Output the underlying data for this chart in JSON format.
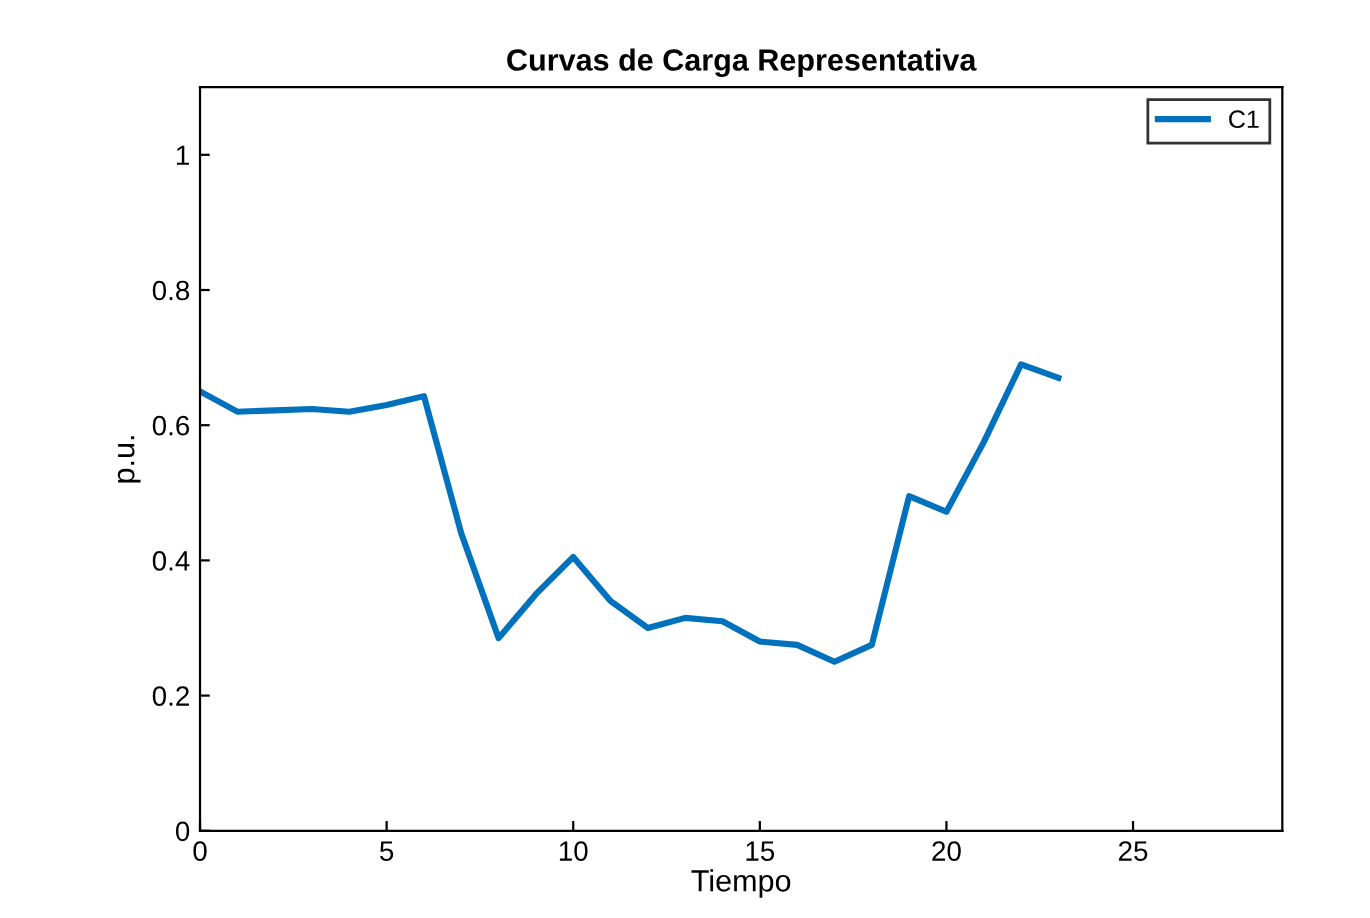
{
  "chart_data": {
    "type": "line",
    "title": "Curvas de Carga Representativa",
    "xlabel": "Tiempo",
    "ylabel": "p.u.",
    "x": [
      0,
      1,
      2,
      3,
      4,
      5,
      6,
      7,
      8,
      9,
      10,
      11,
      12,
      13,
      14,
      15,
      16,
      17,
      18,
      19,
      20,
      21,
      22,
      23
    ],
    "series": [
      {
        "name": "C1",
        "color": "#0072bd",
        "values": [
          0.65,
          0.62,
          0.622,
          0.624,
          0.62,
          0.63,
          0.643,
          0.44,
          0.285,
          0.35,
          0.405,
          0.34,
          0.3,
          0.315,
          0.31,
          0.28,
          0.275,
          0.25,
          0.275,
          0.495,
          0.472,
          0.575,
          0.69,
          0.67
        ]
      }
    ],
    "xlim": [
      0,
      29
    ],
    "xticks": [
      0,
      5,
      10,
      15,
      20,
      25
    ],
    "ylim": [
      0,
      1.1
    ],
    "yticks": [
      0,
      0.2,
      0.4,
      0.6,
      0.8,
      1
    ],
    "legend": "top right",
    "grid": false,
    "marker": "none",
    "line_style": "solid"
  }
}
